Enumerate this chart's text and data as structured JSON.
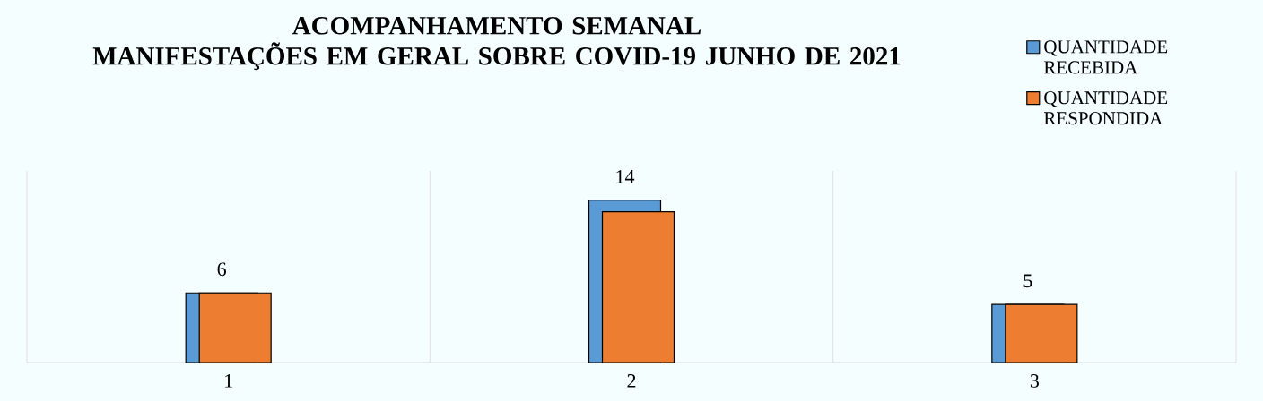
{
  "chart_data": {
    "type": "bar",
    "title": "ACOMPANHAMENTO SEMANAL",
    "subtitle": "MANIFESTAÇÕES EM GERAL SOBRE COVID-19 JUNHO DE 2021",
    "categories": [
      "1",
      "2",
      "3"
    ],
    "series": [
      {
        "name": "QUANTIDADE RECEBIDA",
        "color": "#5b9bd5",
        "values": [
          6,
          14,
          5
        ],
        "value_labels": [
          "6",
          "14",
          "5"
        ]
      },
      {
        "name": "QUANTIDADE RESPONDIDA",
        "color": "#ed7d31",
        "values": [
          6,
          13,
          5
        ]
      }
    ],
    "grid": "x",
    "legend": "top right"
  }
}
